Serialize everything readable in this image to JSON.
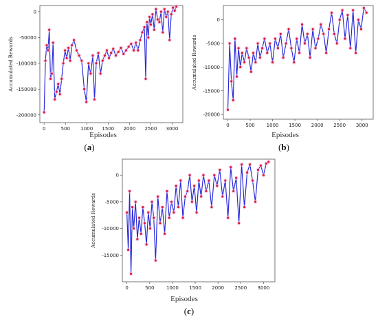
{
  "panels": [
    {
      "xlabel": "Episodes",
      "ylabel": "Accumulated Rewards",
      "caption_open": "(",
      "caption_letter": "a",
      "caption_close": ")"
    },
    {
      "xlabel": "Episodes",
      "ylabel": "Accumulated Rewards",
      "caption_open": "(",
      "caption_letter": "b",
      "caption_close": ")"
    },
    {
      "xlabel": "Episodes",
      "ylabel": "Accumulated Rewards",
      "caption_open": "(",
      "caption_letter": "c",
      "caption_close": ")"
    }
  ],
  "colors": {
    "line": "#2a2ad8",
    "marker": "#d81b3a",
    "halo": "#f6c6ea"
  },
  "chart_data": [
    {
      "type": "line",
      "xlabel": "Episodes",
      "ylabel": "Accumulated Rewards",
      "xlim": [
        -100,
        3250
      ],
      "ylim": [
        -215000,
        12000
      ],
      "xticks": [
        0,
        500,
        1000,
        1500,
        2000,
        2500,
        3000
      ],
      "yticks": [
        0,
        -50000,
        -100000,
        -150000,
        -200000
      ],
      "grid": false,
      "x": [
        0,
        30,
        60,
        90,
        120,
        150,
        180,
        210,
        250,
        290,
        330,
        370,
        410,
        450,
        490,
        530,
        570,
        610,
        650,
        700,
        760,
        820,
        880,
        940,
        990,
        1040,
        1090,
        1140,
        1180,
        1220,
        1270,
        1320,
        1370,
        1420,
        1470,
        1520,
        1570,
        1620,
        1680,
        1740,
        1800,
        1860,
        1920,
        1980,
        2040,
        2100,
        2150,
        2200,
        2250,
        2300,
        2350,
        2380,
        2410,
        2440,
        2470,
        2500,
        2540,
        2580,
        2620,
        2660,
        2700,
        2740,
        2780,
        2820,
        2860,
        2900,
        2940,
        2980,
        3020,
        3060,
        3100
      ],
      "y": [
        -195000,
        -95000,
        -65000,
        -75000,
        -35000,
        -130000,
        -120000,
        -60000,
        -170000,
        -155000,
        -140000,
        -160000,
        -130000,
        -100000,
        -75000,
        -90000,
        -70000,
        -95000,
        -65000,
        -55000,
        -75000,
        -85000,
        -95000,
        -150000,
        -175000,
        -100000,
        -120000,
        -85000,
        -170000,
        -100000,
        -80000,
        -120000,
        -95000,
        -85000,
        -75000,
        -90000,
        -80000,
        -72000,
        -85000,
        -78000,
        -70000,
        -82000,
        -75000,
        -68000,
        -62000,
        -75000,
        -60000,
        -75000,
        -55000,
        -40000,
        -30000,
        -130000,
        -20000,
        -50000,
        -10000,
        -25000,
        -5000,
        -35000,
        5000,
        -15000,
        -20000,
        0,
        -40000,
        5000,
        -10000,
        0,
        -55000,
        -5000,
        8000,
        2000,
        10000
      ]
    },
    {
      "type": "line",
      "xlabel": "Episodes",
      "ylabel": "Accumulated Rewards",
      "xlim": [
        -100,
        3250
      ],
      "ylim": [
        -21000,
        3000
      ],
      "xticks": [
        0,
        500,
        1000,
        1500,
        2000,
        2500,
        3000
      ],
      "yticks": [
        0,
        -5000,
        -10000,
        -15000,
        -20000
      ],
      "grid": false,
      "x": [
        0,
        40,
        80,
        120,
        160,
        200,
        240,
        280,
        320,
        370,
        420,
        470,
        520,
        570,
        620,
        670,
        720,
        770,
        820,
        880,
        940,
        1000,
        1060,
        1120,
        1180,
        1240,
        1300,
        1360,
        1420,
        1480,
        1540,
        1600,
        1660,
        1720,
        1780,
        1840,
        1900,
        1960,
        2020,
        2080,
        2140,
        2200,
        2260,
        2320,
        2380,
        2440,
        2500,
        2560,
        2620,
        2680,
        2740,
        2800,
        2860,
        2920,
        2980,
        3040,
        3100
      ],
      "y": [
        -19000,
        -5000,
        -13000,
        -17000,
        -4000,
        -12000,
        -6000,
        -10000,
        -7000,
        -9000,
        -6000,
        -8000,
        -11000,
        -7000,
        -9000,
        -5000,
        -8000,
        -6000,
        -4000,
        -7000,
        -5000,
        -9000,
        -4000,
        -6000,
        -3000,
        -8000,
        -5000,
        -2000,
        -6000,
        -9000,
        -4000,
        -7000,
        -1000,
        -5000,
        -3000,
        -8000,
        -2000,
        -6000,
        -4000,
        -1000,
        -3000,
        -7000,
        -2000,
        1500,
        -3000,
        -5000,
        0,
        2000,
        -4000,
        1000,
        -6000,
        2000,
        -7000,
        0,
        -2000,
        2500,
        1500
      ]
    },
    {
      "type": "line",
      "xlabel": "Episodes",
      "ylabel": "Accumulated Rewards",
      "xlim": [
        -100,
        3250
      ],
      "ylim": [
        -20000,
        3000
      ],
      "xticks": [
        0,
        500,
        1000,
        1500,
        2000,
        2500,
        3000
      ],
      "yticks": [
        0,
        -5000,
        -10000,
        -15000
      ],
      "grid": false,
      "x": [
        0,
        30,
        60,
        90,
        120,
        150,
        190,
        230,
        270,
        310,
        350,
        390,
        430,
        470,
        510,
        550,
        590,
        630,
        680,
        730,
        780,
        830,
        880,
        930,
        980,
        1030,
        1080,
        1130,
        1180,
        1230,
        1280,
        1330,
        1380,
        1430,
        1480,
        1530,
        1580,
        1630,
        1680,
        1740,
        1800,
        1860,
        1920,
        1980,
        2040,
        2100,
        2160,
        2220,
        2280,
        2340,
        2400,
        2460,
        2520,
        2580,
        2640,
        2700,
        2760,
        2820,
        2880,
        2940,
        3000,
        3060,
        3110
      ],
      "y": [
        -7000,
        -14000,
        -3000,
        -18500,
        -6000,
        -10000,
        -5000,
        -12000,
        -8000,
        -11000,
        -6000,
        -9000,
        -13000,
        -7000,
        -10000,
        -5000,
        -8000,
        -16000,
        -4000,
        -9000,
        -6000,
        -11000,
        -3000,
        -8000,
        -5000,
        -7000,
        -2000,
        -6000,
        -1000,
        -8000,
        -4000,
        -3000,
        0,
        -5000,
        -2000,
        -7000,
        -1000,
        -4000,
        0,
        -3000,
        -1000,
        -6000,
        0,
        -2000,
        1000,
        -4000,
        -1000,
        -8000,
        1500,
        -3000,
        -500,
        -9000,
        2000,
        -6000,
        500,
        2000,
        -1000,
        -5000,
        1000,
        1800,
        0,
        2200,
        2500
      ]
    }
  ]
}
